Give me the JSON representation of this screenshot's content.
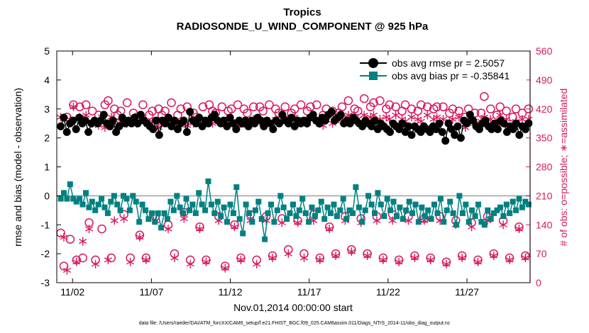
{
  "chart_data": {
    "type": "line",
    "title": "Tropics",
    "subtitle": "RADIOSONDE_U_WIND_COMPONENT @ 925 hPa",
    "xlabel": "Nov.01,2014 00:00:00 start",
    "ylabel": "rmse and bias (model - observation)",
    "y2label": "# of obs: o=possible; ∗=assimilated",
    "footnote": "data file: /Users/raeder/DAI/ATM_forcXX/CAM6_setup/f.e21.FHIST_BGC.f09_025.CAM6assim.011/Diags_NTrS_2014-11/obs_diag_output.nc",
    "xlim": [
      0.5,
      30.5
    ],
    "ylim": [
      -3,
      5
    ],
    "y2lim": [
      0,
      560
    ],
    "x_ticks": [
      1.5,
      6.5,
      11.5,
      16.5,
      21.5,
      26.5
    ],
    "x_tick_labels": [
      "11/02",
      "11/07",
      "11/12",
      "11/17",
      "11/22",
      "11/27"
    ],
    "y_ticks": [
      -3,
      -2,
      -1,
      0,
      1,
      2,
      3,
      4,
      5
    ],
    "y_tick_labels": [
      "-3",
      "-2",
      "-1",
      "0",
      "1",
      "2",
      "3",
      "4",
      "5"
    ],
    "y2_ticks": [
      0,
      70,
      140,
      210,
      280,
      350,
      420,
      490,
      560
    ],
    "y2_tick_labels": [
      "0",
      "70",
      "140",
      "210",
      "280",
      "350",
      "420",
      "490",
      "560"
    ],
    "colors": {
      "rmse": "#000000",
      "bias": "#008080",
      "obs": "#d6185f",
      "zero_line": "#b4b4b4"
    },
    "legend_position": "top-right",
    "legend": [
      {
        "key": "rmse",
        "label": "obs avg rmse pr = 2.5057"
      },
      {
        "key": "bias",
        "label": "obs avg bias pr = -0.35841"
      }
    ],
    "series": [
      {
        "name": "obs avg rmse",
        "key": "rmse",
        "axis": "left",
        "values": [
          2.4,
          2.7,
          2.2,
          2.5,
          2.6,
          2.3,
          2.7,
          2.5,
          2.6,
          2.2,
          2.5,
          2.6,
          2.5,
          2.6,
          2.8,
          2.5,
          2.4,
          2.6,
          2.2,
          2.4,
          2.7,
          2.5,
          2.6,
          2.5,
          2.7,
          2.5,
          2.8,
          2.6,
          2.5,
          2.4,
          2.3,
          2.6,
          2.1,
          2.6,
          2.5,
          2.7,
          2.4,
          2.6,
          2.3,
          2.5,
          2.6,
          2.2,
          2.9,
          2.6,
          2.5,
          2.7,
          2.4,
          2.6,
          2.5,
          2.7,
          2.8,
          2.6,
          2.5,
          2.6,
          2.4,
          2.7,
          2.5,
          2.3,
          2.6,
          2.5,
          2.6,
          2.4,
          2.6,
          2.5,
          2.7,
          2.6,
          2.4,
          2.6,
          2.5,
          2.3,
          2.6,
          2.5,
          2.8,
          2.6,
          2.5,
          2.7,
          2.4,
          2.6,
          2.5,
          2.6,
          2.5,
          2.7,
          2.8,
          2.6,
          2.5,
          2.7,
          2.6,
          2.8,
          2.9,
          2.6,
          2.7,
          2.8,
          2.5,
          2.6,
          2.5,
          2.7,
          2.6,
          2.5,
          2.4,
          2.6,
          2.5,
          2.4,
          2.6,
          2.3,
          2.5,
          2.4,
          2.3,
          2.2,
          2.5,
          2.4,
          2.3,
          2.5,
          2.2,
          2.4,
          2.1,
          2.4,
          2.3,
          2.2,
          2.4,
          2.3,
          2.2,
          2.4,
          2.3,
          2.5,
          2.2,
          1.9,
          2.5,
          2.3,
          2.1,
          2.4,
          2.0,
          2.6,
          2.5,
          2.8,
          2.6,
          2.4,
          2.3,
          2.5,
          2.6,
          2.4,
          2.3,
          2.5,
          2.3,
          2.6,
          2.5,
          2.2,
          2.4,
          2.3,
          2.5,
          2.1,
          2.4,
          2.3,
          2.5
        ]
      },
      {
        "name": "obs avg bias",
        "key": "bias",
        "axis": "left",
        "values": [
          -0.1,
          0.1,
          -0.1,
          0.4,
          -0.1,
          -0.2,
          -0.1,
          -0.3,
          0.1,
          -0.4,
          -0.2,
          -0.5,
          -0.3,
          -0.1,
          -0.4,
          -0.6,
          -0.2,
          0.0,
          -0.3,
          -0.5,
          0.0,
          -0.1,
          -0.5,
          0.0,
          -0.2,
          -0.9,
          -0.3,
          -0.5,
          -0.8,
          -0.6,
          -0.9,
          -0.6,
          -1.1,
          -0.6,
          -0.8,
          -0.2,
          -0.5,
          0.0,
          -0.4,
          -0.6,
          -0.1,
          -0.5,
          -0.3,
          -0.6,
          0.1,
          -0.3,
          -0.5,
          0.5,
          -0.3,
          -0.6,
          -0.2,
          -0.7,
          -0.4,
          -0.9,
          -0.3,
          -0.6,
          0.3,
          -0.8,
          -1.3,
          -0.3,
          -0.6,
          -0.9,
          -0.5,
          -0.2,
          -0.8,
          -1.5,
          -0.6,
          -0.3,
          -0.9,
          -0.5,
          0.0,
          -0.4,
          -0.8,
          -0.6,
          -0.3,
          -0.7,
          -0.5,
          -0.1,
          -0.6,
          -0.9,
          -0.4,
          -0.7,
          -0.5,
          -0.2,
          -0.8,
          -0.4,
          -0.6,
          -0.3,
          -0.7,
          -0.5,
          -0.1,
          -0.8,
          -0.5,
          -0.6,
          0.3,
          -0.4,
          -0.9,
          -0.5,
          0.0,
          -0.3,
          -0.6,
          0.1,
          -0.3,
          -0.7,
          -0.1,
          -0.5,
          -0.2,
          -0.7,
          -0.4,
          -0.8,
          -0.5,
          -0.2,
          -0.6,
          -0.3,
          -0.9,
          -0.4,
          -0.7,
          -0.5,
          -0.8,
          -0.3,
          -0.6,
          -0.1,
          -0.9,
          -0.5,
          -0.2,
          -0.6,
          -1.0,
          0.0,
          -0.6,
          -0.3,
          -0.9,
          -0.5,
          -0.7,
          -0.3,
          -0.9,
          -1.0,
          -0.5,
          -0.8,
          -0.6,
          -0.5,
          -0.4,
          -0.7,
          -0.3,
          -0.6,
          -0.2,
          -0.5,
          -0.1,
          -0.4,
          -0.2,
          -0.3
        ]
      },
      {
        "name": "# obs possible",
        "key": "obs",
        "axis": "right",
        "marker": "circle",
        "values": [
          120,
          40,
          400,
          105,
          430,
          55,
          425,
          60,
          430,
          145,
          415,
          55,
          405,
          130,
          430,
          440,
          60,
          420,
          405,
          415,
          165,
          435,
          60,
          410,
          400,
          115,
          430,
          60,
          405,
          415,
          160,
          420,
          405,
          415,
          140,
          435,
          70,
          405,
          420,
          170,
          425,
          55,
          410,
          400,
          135,
          425,
          55,
          430,
          415,
          410,
          160,
          425,
          40,
          415,
          420,
          140,
          430,
          60,
          420,
          410,
          165,
          425,
          55,
          425,
          415,
          160,
          430,
          65,
          420,
          410,
          155,
          425,
          80,
          410,
          420,
          150,
          430,
          70,
          415,
          425,
          165,
          430,
          60,
          405,
          420,
          135,
          415,
          70,
          410,
          425,
          160,
          440,
          80,
          420,
          415,
          155,
          445,
          70,
          425,
          435,
          160,
          440,
          60,
          420,
          430,
          165,
          425,
          55,
          415,
          430,
          160,
          420,
          65,
          415,
          430,
          155,
          425,
          60,
          420,
          425,
          160,
          425,
          50,
          410,
          420,
          150,
          415,
          65,
          400,
          420,
          145,
          410,
          55,
          410,
          450,
          160,
          420,
          70,
          405,
          425,
          150,
          415,
          60,
          400,
          420,
          135,
          410,
          65,
          420
        ]
      },
      {
        "name": "# obs assimilated",
        "key": "obs",
        "axis": "right",
        "marker": "asterisk",
        "values": [
          400,
          110,
          30,
          395,
          425,
          50,
          400,
          100,
          405,
          130,
          385,
          45,
          380,
          400,
          375,
          55,
          400,
          150,
          380,
          390,
          155,
          385,
          50,
          390,
          385,
          110,
          400,
          55,
          385,
          390,
          150,
          375,
          385,
          395,
          130,
          390,
          60,
          385,
          390,
          155,
          380,
          45,
          385,
          390,
          130,
          385,
          50,
          390,
          385,
          395,
          150,
          390,
          35,
          385,
          390,
          135,
          380,
          55,
          385,
          390,
          150,
          395,
          45,
          390,
          385,
          150,
          390,
          60,
          395,
          390,
          145,
          400,
          70,
          395,
          400,
          145,
          390,
          60,
          385,
          395,
          150,
          390,
          55,
          380,
          400,
          130,
          385,
          65,
          395,
          400,
          150,
          405,
          75,
          400,
          395,
          145,
          405,
          65,
          400,
          405,
          150,
          395,
          55,
          400,
          395,
          150,
          405,
          50,
          395,
          390,
          150,
          400,
          60,
          395,
          390,
          150,
          405,
          55,
          395,
          400,
          150,
          395,
          45,
          390,
          395,
          140,
          400,
          60,
          375,
          395,
          135,
          385,
          50,
          390,
          400,
          150,
          395,
          65,
          385,
          405,
          140,
          395,
          55,
          380,
          390,
          130,
          395,
          60,
          395
        ]
      }
    ]
  }
}
